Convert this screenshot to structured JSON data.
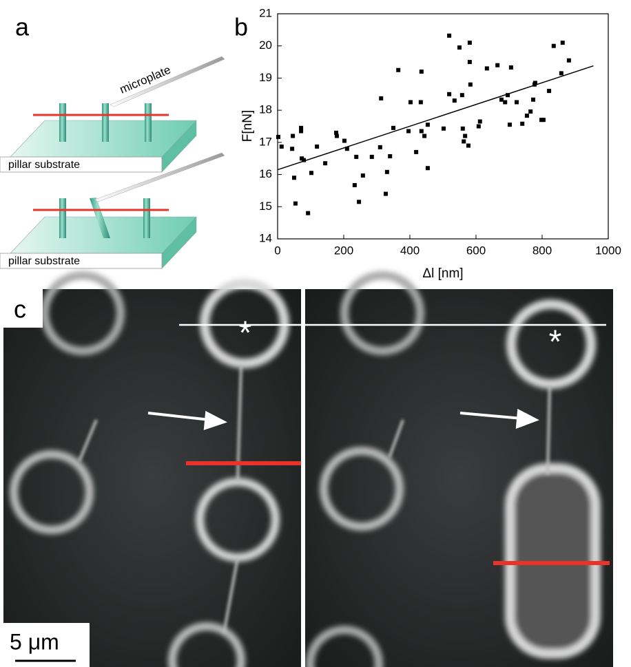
{
  "panel_a": {
    "label": "a",
    "microplate": "microplate",
    "substrate_top": "pillar substrate",
    "substrate_bottom": "pillar substrate"
  },
  "chart_data": {
    "type": "scatter",
    "label": "b",
    "x_label": "Δl [nm]",
    "y_label": "F[nN]",
    "color": "#000000",
    "x": [
      2,
      12,
      46,
      44,
      50,
      54,
      71,
      71,
      73,
      79,
      92,
      102,
      119,
      144,
      177,
      179,
      202,
      210,
      233,
      238,
      246,
      258,
      285,
      310,
      313,
      327,
      331,
      340,
      350,
      365,
      396,
      402,
      419,
      435,
      433,
      435,
      444,
      454,
      454,
      502,
      519,
      519,
      535,
      550,
      558,
      560,
      563,
      567,
      577,
      581,
      583,
      581,
      612,
      608,
      633,
      665,
      677,
      688,
      696,
      702,
      706,
      723,
      740,
      754,
      765,
      773,
      777,
      779,
      798,
      804,
      821,
      835,
      858,
      862,
      881
    ],
    "values": [
      17.17,
      16.87,
      17.2,
      16.8,
      15.9,
      15.1,
      17.45,
      17.35,
      16.5,
      16.45,
      14.8,
      16.05,
      16.87,
      16.35,
      17.3,
      17.2,
      17.05,
      16.8,
      15.67,
      16.55,
      15.15,
      15.97,
      16.55,
      16.85,
      18.37,
      15.4,
      16.08,
      16.57,
      17.45,
      19.25,
      17.35,
      18.25,
      16.7,
      17.35,
      18.25,
      19.2,
      17.2,
      17.55,
      16.2,
      17.43,
      20.32,
      18.5,
      18.3,
      19.95,
      18.47,
      17.43,
      17.03,
      17.2,
      16.9,
      19.5,
      18.8,
      20.1,
      17.65,
      17.5,
      19.3,
      19.4,
      18.33,
      18.25,
      18.47,
      17.55,
      19.33,
      18.25,
      17.58,
      17.83,
      17.96,
      18.33,
      18.8,
      18.85,
      17.7,
      17.7,
      18.6,
      20,
      19.15,
      20.1,
      19.55
    ],
    "fit": {
      "x": [
        0,
        955
      ],
      "values": [
        16.15,
        19.38
      ]
    },
    "xlim": [
      0,
      1000
    ],
    "ylim": [
      14,
      21
    ],
    "xticks": [
      0,
      200,
      400,
      600,
      800,
      1000
    ],
    "yticks": [
      14,
      15,
      16,
      17,
      18,
      19,
      20,
      21
    ]
  },
  "panel_c": {
    "label": "c",
    "scale_bar": "5 μm",
    "markers": [
      "*",
      "*"
    ]
  }
}
